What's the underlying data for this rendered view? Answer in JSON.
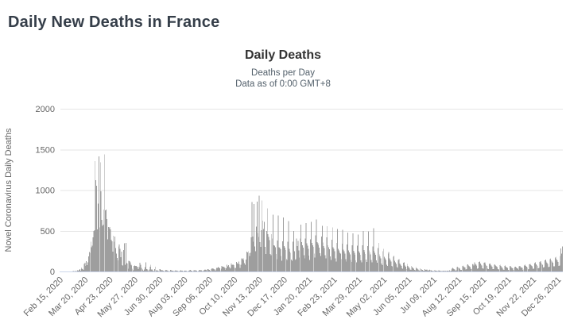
{
  "page": {
    "title": "Daily New Deaths in France"
  },
  "colors": {
    "page_title": "#353e49",
    "chart_title": "#333333",
    "chart_subtitle": "#53606b",
    "axis_label": "#666666",
    "grid": "#e6e6e6",
    "axis_line": "#ccd6eb",
    "bar": "#9e9e9e"
  },
  "chart": {
    "title": "Daily Deaths",
    "subtitle_line1": "Deaths per Day",
    "subtitle_line2": "Data as of 0:00 GMT+8"
  },
  "chart_data": {
    "type": "bar",
    "title": "Daily Deaths",
    "subtitle": [
      "Deaths per Day",
      "Data as of 0:00 GMT+8"
    ],
    "xlabel": "",
    "ylabel": "Novel Coronavirus Daily Deaths",
    "ylim": [
      0,
      2000
    ],
    "y_ticks": [
      0,
      500,
      1000,
      1500,
      2000
    ],
    "grid": true,
    "legend": false,
    "frequency": "daily",
    "start_date": "Feb 15, 2020",
    "end_date": "Dec 31, 2021",
    "x_tick_labels": [
      "Feb 15, 2020",
      "Mar 20, 2020",
      "Apr 23, 2020",
      "May 27, 2020",
      "Jun 30, 2020",
      "Aug 03, 2020",
      "Sep 06, 2020",
      "Oct 10, 2020",
      "Nov 13, 2020",
      "Dec 17, 2020",
      "Jan 20, 2021",
      "Feb 23, 2021",
      "Mar 29, 2021",
      "May 02, 2021",
      "Jun 05, 2021",
      "Jul 09, 2021",
      "Aug 12, 2021",
      "Sep 15, 2021",
      "Oct 19, 2021",
      "Nov 22, 2021",
      "Dec 26, 2021"
    ],
    "x_tick_day_indices": [
      0,
      34,
      68,
      102,
      136,
      170,
      204,
      238,
      272,
      306,
      340,
      374,
      408,
      442,
      476,
      510,
      544,
      578,
      612,
      646,
      680
    ],
    "values": [
      0,
      0,
      0,
      0,
      1,
      0,
      0,
      0,
      0,
      0,
      1,
      0,
      0,
      1,
      2,
      2,
      1,
      3,
      4,
      1,
      3,
      11,
      3,
      13,
      9,
      19,
      27,
      12,
      48,
      36,
      29,
      21,
      95,
      108,
      69,
      128,
      78,
      112,
      186,
      240,
      231,
      365,
      299,
      319,
      418,
      499,
      509,
      1355,
      1120,
      1053,
      518,
      833,
      1417,
      541,
      1341,
      987,
      635,
      561,
      574,
      762,
      1438,
      753,
      761,
      642,
      395,
      547,
      531,
      544,
      516,
      389,
      369,
      242,
      437,
      367,
      427,
      289,
      218,
      166,
      135,
      306,
      330,
      278,
      178,
      243,
      80,
      70,
      263,
      348,
      83,
      351,
      104,
      96,
      35,
      131,
      125,
      110,
      83,
      74,
      35,
      13,
      70,
      73,
      66,
      66,
      52,
      57,
      31,
      52,
      107,
      81,
      44,
      46,
      24,
      9,
      23,
      54,
      111,
      28,
      28,
      14,
      7,
      26,
      57,
      81,
      23,
      26,
      8,
      7,
      29,
      57,
      18,
      10,
      13,
      8,
      2,
      30,
      27,
      18,
      17,
      14,
      8,
      2,
      3,
      14,
      21,
      16,
      10,
      7,
      2,
      3,
      18,
      16,
      9,
      8,
      3,
      1,
      12,
      14,
      12,
      9,
      7,
      1,
      3,
      11,
      13,
      10,
      8,
      2,
      5,
      12,
      11,
      9,
      6,
      1,
      2,
      12,
      14,
      18,
      12,
      9,
      1,
      4,
      16,
      17,
      15,
      12,
      10,
      1,
      6,
      15,
      19,
      17,
      14,
      9,
      2,
      8,
      21,
      25,
      20,
      16,
      25,
      27,
      23,
      19,
      8,
      30,
      39,
      34,
      38,
      30,
      25,
      11,
      26,
      44,
      42,
      52,
      48,
      40,
      15,
      33,
      66,
      60,
      58,
      52,
      43,
      20,
      39,
      81,
      63,
      76,
      54,
      32,
      46,
      96,
      80,
      88,
      76,
      54,
      38,
      46,
      117,
      104,
      95,
      122,
      89,
      46,
      85,
      163,
      151,
      162,
      137,
      104,
      85,
      146,
      244,
      235,
      250,
      224,
      190,
      231,
      418,
      854,
      428,
      365,
      828,
      306,
      251,
      551,
      857,
      472,
      425,
      932,
      360,
      302,
      506,
      871,
      625,
      522,
      611,
      302,
      214,
      500,
      775,
      457,
      425,
      386,
      215,
      198,
      458,
      406,
      700,
      321,
      317,
      296,
      213,
      150,
      379,
      690,
      296,
      292,
      275,
      190,
      131,
      371,
      665,
      312,
      292,
      263,
      155,
      141,
      364,
      622,
      278,
      245,
      231,
      147,
      130,
      364,
      498,
      251,
      141,
      151,
      405,
      310,
      378,
      260,
      172,
      404,
      575,
      362,
      322,
      294,
      201,
      162,
      404,
      595,
      344,
      316,
      278,
      195,
      141,
      396,
      612,
      350,
      322,
      301,
      222,
      172,
      445,
      640,
      360,
      344,
      320,
      292,
      224,
      190,
      431,
      560,
      358,
      310,
      288,
      200,
      161,
      418,
      555,
      322,
      296,
      271,
      186,
      141,
      388,
      540,
      300,
      277,
      250,
      160,
      122,
      351,
      520,
      280,
      257,
      230,
      222,
      150,
      340,
      510,
      270,
      248,
      222,
      150,
      120,
      330,
      480,
      260,
      235,
      212,
      140,
      115,
      320,
      470,
      255,
      230,
      205,
      135,
      110,
      315,
      455,
      250,
      228,
      205,
      135,
      110,
      320,
      500,
      265,
      240,
      215,
      145,
      115,
      310,
      495,
      260,
      235,
      210,
      140,
      110,
      305,
      530,
      255,
      230,
      205,
      135,
      105,
      290,
      350,
      210,
      185,
      160,
      100,
      80,
      250,
      280,
      180,
      160,
      140,
      85,
      70,
      220,
      240,
      160,
      140,
      120,
      70,
      60,
      180,
      190,
      130,
      110,
      95,
      55,
      45,
      140,
      150,
      100,
      85,
      70,
      40,
      35,
      105,
      110,
      75,
      60,
      30,
      95,
      70,
      55,
      45,
      25,
      20,
      70,
      52,
      42,
      35,
      20,
      15,
      52,
      40,
      32,
      26,
      15,
      12,
      38,
      30,
      24,
      20,
      12,
      10,
      28,
      22,
      18,
      25,
      14,
      8,
      20,
      26,
      18,
      14,
      10,
      6,
      5,
      18,
      14,
      11,
      8,
      5,
      4,
      14,
      11,
      9,
      7,
      4,
      3,
      11,
      9,
      7,
      10,
      4,
      3,
      12,
      10,
      8,
      14,
      6,
      10,
      35,
      45,
      38,
      30,
      25,
      12,
      15,
      55,
      60,
      48,
      42,
      35,
      18,
      20,
      70,
      75,
      62,
      55,
      48,
      25,
      28,
      85,
      90,
      72,
      65,
      55,
      30,
      32,
      95,
      88,
      75,
      110,
      95,
      82,
      70,
      35,
      38,
      115,
      120,
      98,
      85,
      72,
      38,
      35,
      108,
      112,
      92,
      80,
      68,
      35,
      30,
      95,
      100,
      85,
      72,
      60,
      30,
      28,
      85,
      90,
      75,
      62,
      52,
      28,
      25,
      78,
      82,
      66,
      55,
      46,
      25,
      22,
      70,
      74,
      60,
      50,
      42,
      22,
      20,
      62,
      66,
      54,
      46,
      38,
      20,
      18,
      56,
      60,
      48,
      40,
      35,
      20,
      65,
      70,
      56,
      48,
      42,
      22,
      25,
      75,
      82,
      66,
      58,
      50,
      26,
      30,
      88,
      95,
      78,
      68,
      60,
      32,
      35,
      102,
      110,
      90,
      80,
      70,
      38,
      42,
      118,
      125,
      105,
      95,
      85,
      48,
      52,
      138,
      145,
      120,
      108,
      95,
      55,
      58,
      152,
      160,
      135,
      120,
      105,
      62,
      65,
      170,
      180,
      150,
      135,
      118,
      70,
      75,
      190,
      285,
      220,
      305
    ]
  }
}
